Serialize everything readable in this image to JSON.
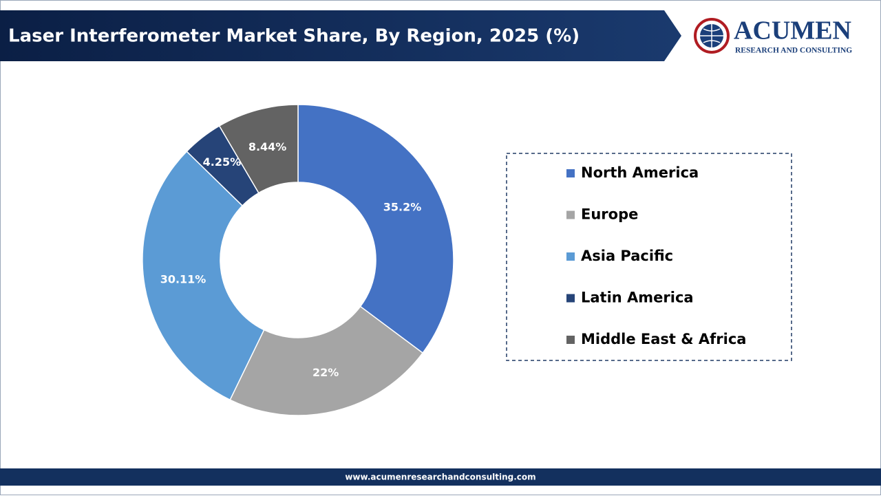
{
  "header": {
    "logo_name": "ACUMEN",
    "logo_tagline": "RESEARCH AND CONSULTING"
  },
  "chart_data": {
    "type": "pie",
    "title": "Laser Interferometer Market Share, By Region, 2025 (%)",
    "categories": [
      "North America",
      "Europe",
      "Asia Pacific",
      "Latin America",
      "Middle East & Africa"
    ],
    "values": [
      35.2,
      22,
      30.11,
      4.25,
      8.44
    ],
    "value_labels": [
      "35.2%",
      "22%",
      "30.11%",
      "4.25%",
      "8.44%"
    ],
    "colors": [
      "#4472c4",
      "#a5a5a5",
      "#5b9bd5",
      "#264478",
      "#636363"
    ],
    "legend": "right"
  },
  "footer": {
    "url": "www.acumenresearchandconsulting.com"
  }
}
